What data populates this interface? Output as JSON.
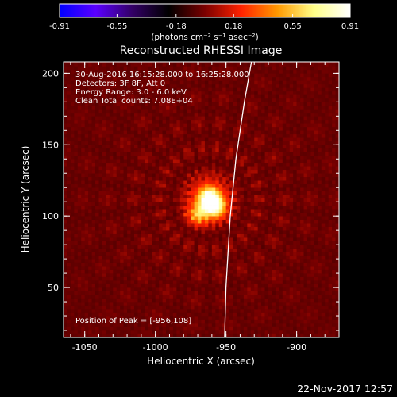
{
  "chart_data": {
    "type": "heatmap",
    "title": "Reconstructed RHESSI Image",
    "colorbar": {
      "label": "(photons cm⁻² s⁻¹ asec⁻²)",
      "range": [
        -0.91,
        0.91
      ],
      "ticks": [
        -0.91,
        -0.55,
        -0.18,
        0.18,
        0.55,
        0.91
      ],
      "tick_labels": [
        "-0.91",
        "-0.55",
        "-0.18",
        "0.18",
        "0.55",
        "0.91"
      ],
      "colormap": [
        "#0000ff",
        "#5a00ff",
        "#330066",
        "#000000",
        "#7a0000",
        "#ff2200",
        "#ff9900",
        "#ffff88",
        "#ffffff"
      ]
    },
    "xlabel": "Heliocentric X (arcsec)",
    "ylabel": "Heliocentric Y (arcsec)",
    "xlim": [
      -1065,
      -870
    ],
    "ylim": [
      15,
      208
    ],
    "x_ticks": [
      -1050,
      -1000,
      -950,
      -900
    ],
    "x_tick_labels": [
      "-1050",
      "-1000",
      "-950",
      "-900"
    ],
    "y_ticks": [
      50,
      100,
      150,
      200
    ],
    "y_tick_labels": [
      "50",
      "100",
      "150",
      "200"
    ],
    "annotations": [
      "30-Aug-2016 16:15:28.000 to 16:25:28.000",
      "Detectors: 3F 8F, Att 0",
      "Energy Range: 3.0 - 6.0 keV",
      "Clean    Total counts: 7.08E+04"
    ],
    "peak_label": "Position of Peak = [-956,108]",
    "peak": [
      -956,
      108
    ],
    "limb_points": [
      [
        -951,
        15
      ],
      [
        -950,
        50
      ],
      [
        -947,
        100
      ],
      [
        -943,
        140
      ],
      [
        -937,
        180
      ],
      [
        -932,
        208
      ]
    ],
    "sources": [
      {
        "x": -962,
        "y": 112,
        "sigma": 7,
        "amp": 0.95
      },
      {
        "x": -957,
        "y": 106,
        "sigma": 5,
        "amp": 0.55
      },
      {
        "x": -970,
        "y": 101,
        "sigma": 5,
        "amp": 0.45
      }
    ],
    "grid": false
  },
  "footer": {
    "timestamp": "22-Nov-2017 12:57"
  }
}
